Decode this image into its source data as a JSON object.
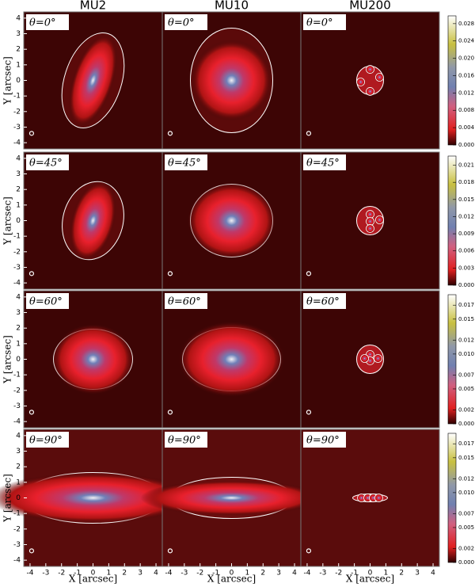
{
  "figure": {
    "columns": [
      "MU2",
      "MU10",
      "MU200"
    ],
    "panel_labels": [
      [
        "θ=0°",
        "θ=0°",
        "θ=0°"
      ],
      [
        "θ=45°",
        "θ=45°",
        "θ=45°"
      ],
      [
        "θ=60°",
        "θ=60°",
        "θ=60°"
      ],
      [
        "θ=90°",
        "θ=90°",
        "θ=90°"
      ]
    ],
    "x_label": "X [arcsec]",
    "y_label": "Y [arcsec]",
    "xlim": [
      -4.4,
      4.4
    ],
    "ylim": [
      -4.4,
      4.4
    ],
    "xticks": [
      -4,
      -3,
      -2,
      -1,
      0,
      1,
      2,
      3,
      4
    ],
    "yticks": [
      -4,
      -3,
      -2,
      -1,
      0,
      1,
      2,
      3,
      4
    ],
    "colorbars": [
      {
        "lim": [
          0,
          0.0298
        ],
        "ticks": [
          {
            "value": 0,
            "label": "0.000"
          },
          {
            "value": 0.004,
            "label": "0.004"
          },
          {
            "value": 0.008,
            "label": "0.008"
          },
          {
            "value": 0.012,
            "label": "0.012"
          },
          {
            "value": 0.016,
            "label": "0.016"
          },
          {
            "value": 0.02,
            "label": "0.020"
          },
          {
            "value": 0.024,
            "label": "0.024"
          },
          {
            "value": 0.028,
            "label": "0.028"
          }
        ]
      },
      {
        "lim": [
          0,
          0.0226
        ],
        "ticks": [
          {
            "value": 0,
            "label": "0.000"
          },
          {
            "value": 0.003,
            "label": "0.003"
          },
          {
            "value": 0.006,
            "label": "0.006"
          },
          {
            "value": 0.009,
            "label": "0.009"
          },
          {
            "value": 0.012,
            "label": "0.012"
          },
          {
            "value": 0.015,
            "label": "0.015"
          },
          {
            "value": 0.018,
            "label": "0.018"
          },
          {
            "value": 0.021,
            "label": "0.021"
          }
        ]
      },
      {
        "lim": [
          0,
          0.0185
        ],
        "ticks": [
          {
            "value": 0,
            "label": "0.000"
          },
          {
            "value": 0.002,
            "label": "0.002"
          },
          {
            "value": 0.005,
            "label": "0.005"
          },
          {
            "value": 0.007,
            "label": "0.007"
          },
          {
            "value": 0.01,
            "label": "0.010"
          },
          {
            "value": 0.012,
            "label": "0.012"
          },
          {
            "value": 0.015,
            "label": "0.015"
          },
          {
            "value": 0.017,
            "label": "0.017"
          }
        ]
      },
      {
        "lim": [
          0,
          0.0185
        ],
        "ticks": [
          {
            "value": 0,
            "label": "0.000"
          },
          {
            "value": 0.002,
            "label": "0.002"
          },
          {
            "value": 0.005,
            "label": "0.005"
          },
          {
            "value": 0.007,
            "label": "0.007"
          },
          {
            "value": 0.01,
            "label": "0.010"
          },
          {
            "value": 0.012,
            "label": "0.012"
          },
          {
            "value": 0.015,
            "label": "0.015"
          },
          {
            "value": 0.017,
            "label": "0.017"
          }
        ]
      }
    ]
  }
}
